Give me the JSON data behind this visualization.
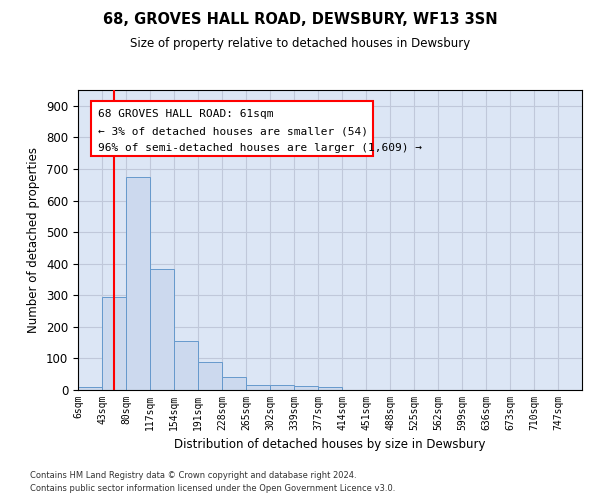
{
  "title": "68, GROVES HALL ROAD, DEWSBURY, WF13 3SN",
  "subtitle": "Size of property relative to detached houses in Dewsbury",
  "xlabel": "Distribution of detached houses by size in Dewsbury",
  "ylabel": "Number of detached properties",
  "bar_values": [
    10,
    295,
    675,
    383,
    155,
    90,
    40,
    17,
    16,
    12,
    10,
    0,
    0,
    0,
    0,
    0,
    0,
    0,
    0,
    0,
    0
  ],
  "bar_labels": [
    "6sqm",
    "43sqm",
    "80sqm",
    "117sqm",
    "154sqm",
    "191sqm",
    "228sqm",
    "265sqm",
    "302sqm",
    "339sqm",
    "377sqm",
    "414sqm",
    "451sqm",
    "488sqm",
    "525sqm",
    "562sqm",
    "599sqm",
    "636sqm",
    "673sqm",
    "710sqm",
    "747sqm"
  ],
  "bar_color": "#ccd9ee",
  "bar_edge_color": "#6699cc",
  "ylim": [
    0,
    950
  ],
  "yticks": [
    0,
    100,
    200,
    300,
    400,
    500,
    600,
    700,
    800,
    900
  ],
  "grid_color": "#c0c8da",
  "bg_color": "#dce6f5",
  "annotation_line1": "68 GROVES HALL ROAD: 61sqm",
  "annotation_line2": "← 3% of detached houses are smaller (54)",
  "annotation_line3": "96% of semi-detached houses are larger (1,609) →",
  "red_line_x": 1.5,
  "footer_line1": "Contains HM Land Registry data © Crown copyright and database right 2024.",
  "footer_line2": "Contains public sector information licensed under the Open Government Licence v3.0."
}
